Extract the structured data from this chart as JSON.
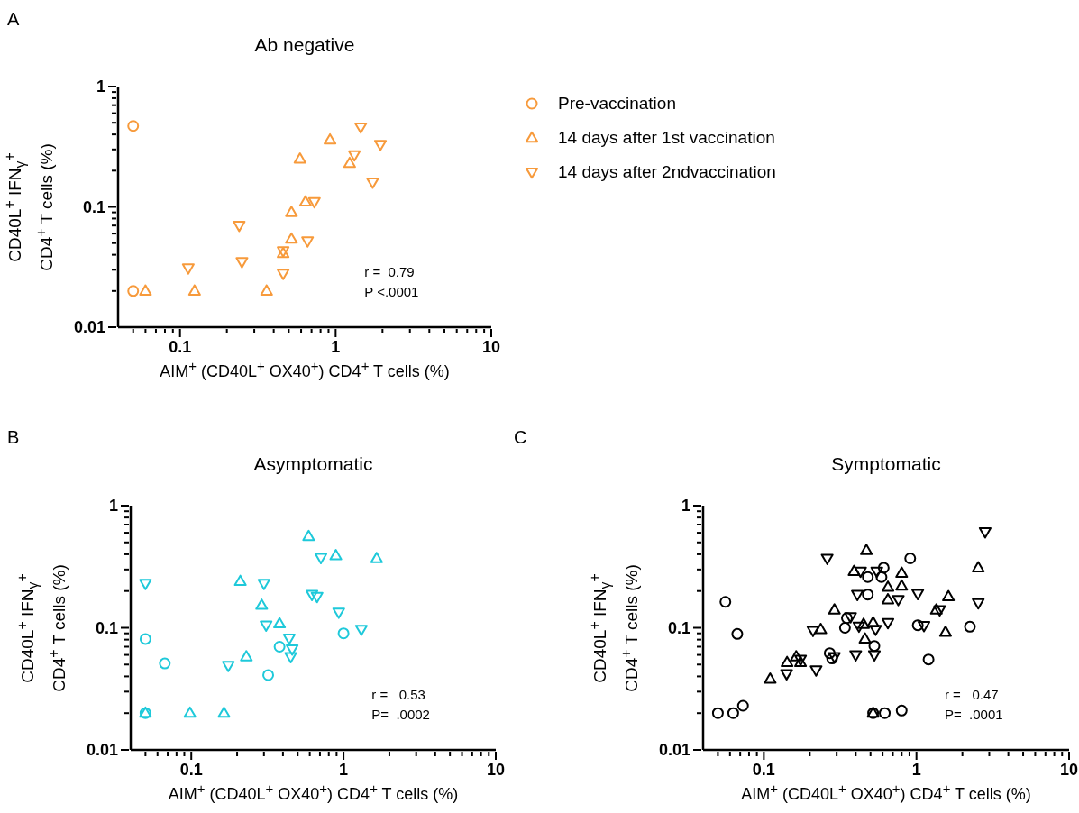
{
  "chart_data": [
    {
      "type": "scatter",
      "title": "Ab negative",
      "xlabel": "AIM$^{+}$ (CD40L$^{+}$ OX40$^{+}$) CD4$^{+}$ T cells (%)",
      "ylabel": "CD40L$^{+}$ IFN$_{γ}$$^{+}$\nCD4$^{+}$ T cells (%)",
      "annotations": [
        "A",
        "r =  0.79",
        "P <.0001"
      ],
      "log": "xy",
      "legend": "right",
      "xlim": [
        0.04,
        10
      ],
      "ylim": [
        0.01,
        1
      ],
      "xticks": [
        {
          "value": 0.05,
          "label": null
        },
        {
          "value": 0.06,
          "label": null
        },
        {
          "value": 0.07,
          "label": null
        },
        {
          "value": 0.08,
          "label": null
        },
        {
          "value": 0.09,
          "label": null
        },
        0.1,
        {
          "value": 0.2,
          "label": null
        },
        {
          "value": 0.3,
          "label": null
        },
        {
          "value": 0.4,
          "label": null
        },
        {
          "value": 0.5,
          "label": null
        },
        {
          "value": 0.6,
          "label": null
        },
        {
          "value": 0.7,
          "label": null
        },
        {
          "value": 0.8,
          "label": null
        },
        {
          "value": 0.9,
          "label": null
        },
        1,
        {
          "value": 2,
          "label": null
        },
        {
          "value": 3,
          "label": null
        },
        {
          "value": 4,
          "label": null
        },
        {
          "value": 5,
          "label": null
        },
        {
          "value": 6,
          "label": null
        },
        {
          "value": 7,
          "label": null
        },
        {
          "value": 8,
          "label": null
        },
        {
          "value": 9,
          "label": null
        },
        10
      ],
      "yticks": [
        0.01,
        {
          "value": 0.02,
          "label": null
        },
        {
          "value": 0.03,
          "label": null
        },
        {
          "value": 0.04,
          "label": null
        },
        {
          "value": 0.05,
          "label": null
        },
        {
          "value": 0.06,
          "label": null
        },
        {
          "value": 0.07,
          "label": null
        },
        {
          "value": 0.08,
          "label": null
        },
        {
          "value": 0.09,
          "label": null
        },
        0.1,
        {
          "value": 0.2,
          "label": null
        },
        {
          "value": 0.3,
          "label": null
        },
        {
          "value": 0.4,
          "label": null
        },
        {
          "value": 0.5,
          "label": null
        },
        {
          "value": 0.6,
          "label": null
        },
        {
          "value": 0.7,
          "label": null
        },
        {
          "value": 0.8,
          "label": null
        },
        {
          "value": 0.9,
          "label": null
        },
        1
      ],
      "series": [
        {
          "name": "Pre-vaccination",
          "color": "#f79a3b",
          "marker": "circle",
          "x": [
            0.05,
            0.05
          ],
          "values": [
            0.47,
            0.02
          ]
        },
        {
          "name": "14 days after 1st vaccination",
          "color": "#f79a3b",
          "marker": "triangle",
          "x": [
            0.06,
            0.124,
            0.36,
            0.46,
            0.52,
            0.52,
            0.64,
            0.59,
            0.92,
            1.23
          ],
          "values": [
            0.02,
            0.02,
            0.02,
            0.041,
            0.054,
            0.09,
            0.11,
            0.25,
            0.36,
            0.23
          ]
        },
        {
          "name": "14 days after 2ndvaccination",
          "color": "#f79a3b",
          "marker": "triangle-down",
          "x": [
            1.45,
            1.94,
            1.32,
            1.73,
            0.73,
            0.66,
            0.46,
            0.46,
            0.24,
            0.25,
            0.113
          ],
          "values": [
            0.46,
            0.33,
            0.27,
            0.16,
            0.11,
            0.052,
            0.043,
            0.028,
            0.07,
            0.035,
            0.031
          ]
        }
      ]
    },
    {
      "type": "scatter",
      "title": "Asymptomatic",
      "xlabel": "AIM$^{+}$ (CD40L$^{+}$ OX40$^{+}$) CD4$^{+}$ T cells (%)",
      "ylabel": "CD40L$^{+}$ IFN$_{γ}$$^{+}$\nCD4$^{+}$ T cells (%)",
      "annotations": [
        "B",
        "r =   0.53",
        "P=  .0002"
      ],
      "log": "xy",
      "xlim": [
        0.04,
        10
      ],
      "ylim": [
        0.01,
        1
      ],
      "xticks": [
        {
          "value": 0.05,
          "label": null
        },
        {
          "value": 0.06,
          "label": null
        },
        {
          "value": 0.07,
          "label": null
        },
        {
          "value": 0.08,
          "label": null
        },
        {
          "value": 0.09,
          "label": null
        },
        0.1,
        {
          "value": 0.2,
          "label": null
        },
        {
          "value": 0.3,
          "label": null
        },
        {
          "value": 0.4,
          "label": null
        },
        {
          "value": 0.5,
          "label": null
        },
        {
          "value": 0.6,
          "label": null
        },
        {
          "value": 0.7,
          "label": null
        },
        {
          "value": 0.8,
          "label": null
        },
        {
          "value": 0.9,
          "label": null
        },
        1,
        {
          "value": 2,
          "label": null
        },
        {
          "value": 3,
          "label": null
        },
        {
          "value": 4,
          "label": null
        },
        {
          "value": 5,
          "label": null
        },
        {
          "value": 6,
          "label": null
        },
        {
          "value": 7,
          "label": null
        },
        {
          "value": 8,
          "label": null
        },
        {
          "value": 9,
          "label": null
        },
        10
      ],
      "yticks": [
        0.01,
        {
          "value": 0.02,
          "label": null
        },
        {
          "value": 0.03,
          "label": null
        },
        {
          "value": 0.04,
          "label": null
        },
        {
          "value": 0.05,
          "label": null
        },
        {
          "value": 0.06,
          "label": null
        },
        {
          "value": 0.07,
          "label": null
        },
        {
          "value": 0.08,
          "label": null
        },
        {
          "value": 0.09,
          "label": null
        },
        0.1,
        {
          "value": 0.2,
          "label": null
        },
        {
          "value": 0.3,
          "label": null
        },
        {
          "value": 0.4,
          "label": null
        },
        {
          "value": 0.5,
          "label": null
        },
        {
          "value": 0.6,
          "label": null
        },
        {
          "value": 0.7,
          "label": null
        },
        {
          "value": 0.8,
          "label": null
        },
        {
          "value": 0.9,
          "label": null
        },
        1
      ],
      "series": [
        {
          "color": "#1ec9da",
          "marker": "circle",
          "x": [
            0.05,
            0.05,
            0.067,
            0.32,
            0.38,
            1.0
          ],
          "values": [
            0.02,
            0.081,
            0.051,
            0.041,
            0.07,
            0.09
          ]
        },
        {
          "color": "#1ec9da",
          "marker": "triangle",
          "x": [
            0.05,
            0.098,
            0.164,
            0.23,
            0.21,
            0.29,
            0.38,
            0.59,
            0.89,
            1.65
          ],
          "values": [
            0.02,
            0.02,
            0.02,
            0.058,
            0.24,
            0.153,
            0.108,
            0.56,
            0.39,
            0.37
          ]
        },
        {
          "color": "#1ec9da",
          "marker": "triangle-down",
          "x": [
            0.05,
            0.3,
            0.31,
            0.175,
            0.44,
            0.46,
            0.45,
            0.62,
            0.67,
            0.71,
            0.93,
            1.31
          ],
          "values": [
            0.23,
            0.23,
            0.105,
            0.049,
            0.082,
            0.067,
            0.058,
            0.187,
            0.18,
            0.375,
            0.134,
            0.097
          ]
        }
      ]
    },
    {
      "type": "scatter",
      "title": "Symptomatic",
      "xlabel": "AIM$^{+}$ (CD40L$^{+}$ OX40$^{+}$) CD4$^{+}$ T cells (%)",
      "ylabel": "CD40L$^{+}$ IFN$_{γ}$$^{+}$\nCD4$^{+}$ T cells (%)",
      "annotations": [
        "C",
        "r =   0.47",
        "P=  .0001"
      ],
      "log": "xy",
      "xlim": [
        0.04,
        10
      ],
      "ylim": [
        0.01,
        1
      ],
      "xticks": [
        {
          "value": 0.05,
          "label": null
        },
        {
          "value": 0.06,
          "label": null
        },
        {
          "value": 0.07,
          "label": null
        },
        {
          "value": 0.08,
          "label": null
        },
        {
          "value": 0.09,
          "label": null
        },
        0.1,
        {
          "value": 0.2,
          "label": null
        },
        {
          "value": 0.3,
          "label": null
        },
        {
          "value": 0.4,
          "label": null
        },
        {
          "value": 0.5,
          "label": null
        },
        {
          "value": 0.6,
          "label": null
        },
        {
          "value": 0.7,
          "label": null
        },
        {
          "value": 0.8,
          "label": null
        },
        {
          "value": 0.9,
          "label": null
        },
        1,
        {
          "value": 2,
          "label": null
        },
        {
          "value": 3,
          "label": null
        },
        {
          "value": 4,
          "label": null
        },
        {
          "value": 5,
          "label": null
        },
        {
          "value": 6,
          "label": null
        },
        {
          "value": 7,
          "label": null
        },
        {
          "value": 8,
          "label": null
        },
        {
          "value": 9,
          "label": null
        },
        10
      ],
      "yticks": [
        0.01,
        {
          "value": 0.02,
          "label": null
        },
        {
          "value": 0.03,
          "label": null
        },
        {
          "value": 0.04,
          "label": null
        },
        {
          "value": 0.05,
          "label": null
        },
        {
          "value": 0.06,
          "label": null
        },
        {
          "value": 0.07,
          "label": null
        },
        {
          "value": 0.08,
          "label": null
        },
        {
          "value": 0.09,
          "label": null
        },
        0.1,
        {
          "value": 0.2,
          "label": null
        },
        {
          "value": 0.3,
          "label": null
        },
        {
          "value": 0.4,
          "label": null
        },
        {
          "value": 0.5,
          "label": null
        },
        {
          "value": 0.6,
          "label": null
        },
        {
          "value": 0.7,
          "label": null
        },
        {
          "value": 0.8,
          "label": null
        },
        {
          "value": 0.9,
          "label": null
        },
        1
      ],
      "series": [
        {
          "color": "#000000",
          "marker": "circle",
          "x": [
            0.05,
            0.063,
            0.073,
            0.056,
            0.067,
            0.52,
            0.62,
            0.8,
            0.27,
            0.28,
            0.34,
            0.35,
            0.48,
            0.48,
            0.59,
            0.61,
            0.53,
            0.91,
            1.02,
            1.2,
            2.24
          ],
          "values": [
            0.02,
            0.02,
            0.023,
            0.163,
            0.089,
            0.02,
            0.02,
            0.021,
            0.062,
            0.056,
            0.1,
            0.12,
            0.187,
            0.26,
            0.26,
            0.31,
            0.071,
            0.37,
            0.105,
            0.055,
            0.102
          ]
        },
        {
          "color": "#000000",
          "marker": "triangle",
          "x": [
            0.11,
            0.142,
            0.163,
            0.174,
            0.236,
            0.29,
            0.39,
            0.47,
            0.45,
            0.46,
            0.52,
            0.52,
            0.65,
            0.65,
            0.8,
            0.8,
            1.35,
            1.62,
            1.55,
            2.54
          ],
          "values": [
            0.038,
            0.052,
            0.058,
            0.052,
            0.097,
            0.14,
            0.29,
            0.43,
            0.107,
            0.081,
            0.11,
            0.02,
            0.215,
            0.17,
            0.28,
            0.22,
            0.14,
            0.18,
            0.092,
            0.31
          ]
        },
        {
          "color": "#000000",
          "marker": "triangle-down",
          "x": [
            0.26,
            0.43,
            0.55,
            0.41,
            0.37,
            0.42,
            0.54,
            0.65,
            1.02,
            0.76,
            1.12,
            1.42,
            2.54,
            2.82,
            0.21,
            0.141,
            0.174,
            0.22,
            0.29,
            0.4,
            0.53
          ],
          "values": [
            0.37,
            0.29,
            0.29,
            0.187,
            0.123,
            0.103,
            0.097,
            0.11,
            0.19,
            0.17,
            0.104,
            0.14,
            0.16,
            0.61,
            0.095,
            0.042,
            0.055,
            0.045,
            0.058,
            0.06,
            0.06
          ]
        }
      ]
    }
  ]
}
